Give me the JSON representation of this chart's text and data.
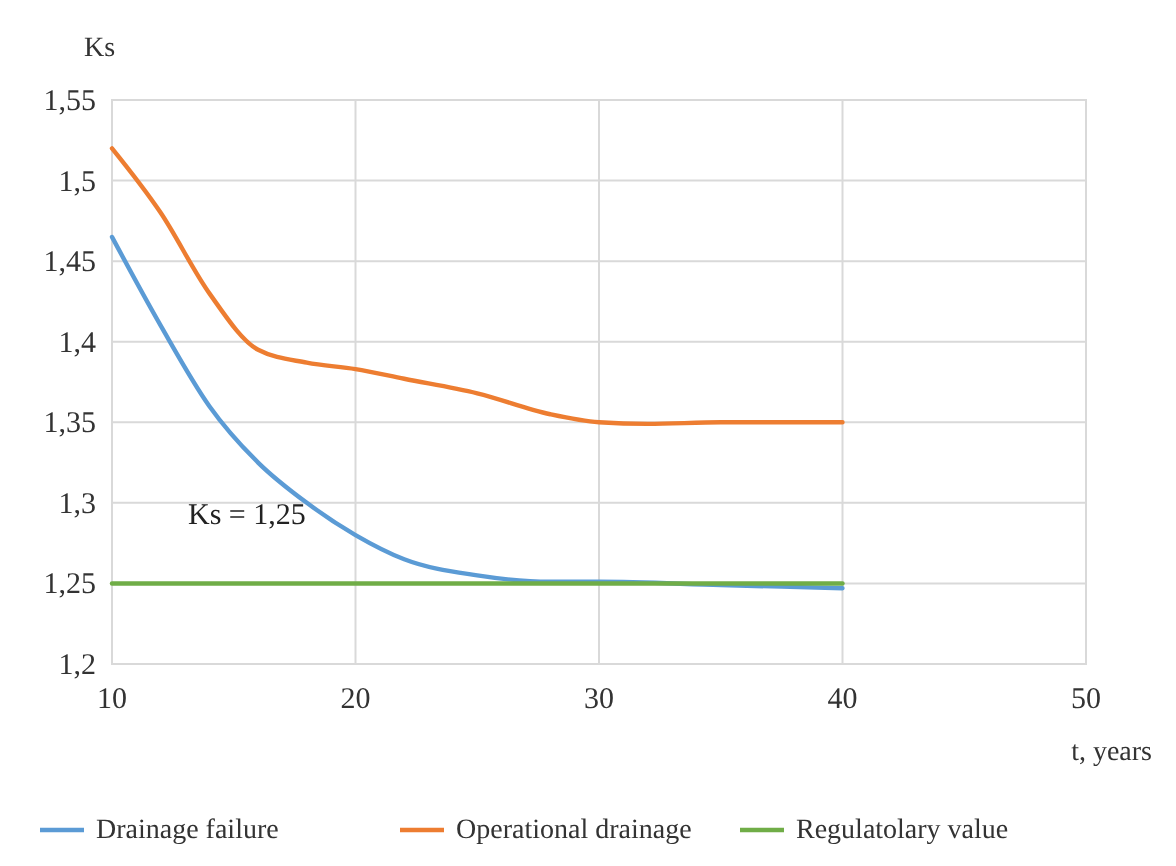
{
  "chart_data": {
    "type": "line",
    "ylabel": "Ks",
    "xlabel": "t, years",
    "xlim": [
      10,
      50
    ],
    "xticks": [
      10,
      20,
      30,
      40,
      50
    ],
    "ylim": [
      1.2,
      1.55
    ],
    "yticks": [
      {
        "value": 1.2,
        "label": "1,2"
      },
      {
        "value": 1.25,
        "label": "1,25"
      },
      {
        "value": 1.3,
        "label": "1,3"
      },
      {
        "value": 1.35,
        "label": "1,35"
      },
      {
        "value": 1.4,
        "label": "1,4"
      },
      {
        "value": 1.45,
        "label": "1,45"
      },
      {
        "value": 1.5,
        "label": "1,5"
      },
      {
        "value": 1.55,
        "label": "1,55"
      }
    ],
    "grid": true,
    "legend": "bottom",
    "marker": "none",
    "line_style": "solid",
    "annotations": [
      "Ks = 1,25"
    ],
    "series": [
      {
        "name": "Drainage failure",
        "color": "#5b9bd5",
        "x": [
          10,
          12,
          14,
          16,
          18,
          20,
          22,
          25,
          28,
          30,
          35,
          40
        ],
        "values": [
          1.465,
          1.41,
          1.36,
          1.325,
          1.3,
          1.28,
          1.265,
          1.255,
          1.251,
          1.251,
          1.249,
          1.247
        ]
      },
      {
        "name": "Operational drainage",
        "color": "#ed7d31",
        "x": [
          10,
          12,
          14,
          16,
          18,
          20,
          22,
          25,
          28,
          30,
          32,
          35,
          40
        ],
        "values": [
          1.52,
          1.48,
          1.43,
          1.395,
          1.387,
          1.383,
          1.377,
          1.368,
          1.355,
          1.35,
          1.349,
          1.35,
          1.35
        ]
      },
      {
        "name": "Regulatolary value",
        "color": "#70ad47",
        "x": [
          10,
          40
        ],
        "values": [
          1.25,
          1.25
        ]
      }
    ]
  }
}
